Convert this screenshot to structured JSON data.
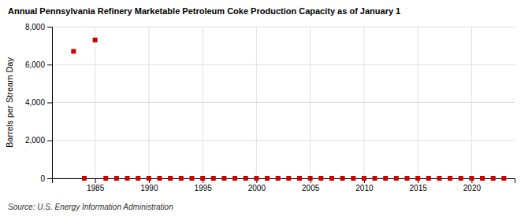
{
  "chart_data": {
    "type": "scatter",
    "title": "Annual Pennsylvania Refinery Marketable Petroleum Coke Production Capacity as of January 1",
    "ylabel": "Barrels per Stream Day",
    "source": "Source: U.S. Energy Information Administration",
    "x": [
      1983,
      1984,
      1985,
      1986,
      1987,
      1988,
      1989,
      1990,
      1991,
      1992,
      1993,
      1994,
      1995,
      1996,
      1997,
      1998,
      1999,
      2000,
      2001,
      2002,
      2003,
      2004,
      2005,
      2006,
      2007,
      2008,
      2009,
      2010,
      2011,
      2012,
      2013,
      2014,
      2015,
      2016,
      2017,
      2018,
      2019,
      2020,
      2021,
      2022,
      2023
    ],
    "values": [
      6700,
      0,
      7300,
      0,
      0,
      0,
      0,
      0,
      0,
      0,
      0,
      0,
      0,
      0,
      0,
      0,
      0,
      0,
      0,
      0,
      0,
      0,
      0,
      0,
      0,
      0,
      0,
      0,
      0,
      0,
      0,
      0,
      0,
      0,
      0,
      0,
      0,
      0,
      0,
      0,
      0
    ],
    "color": "#cc0000",
    "marker": "square",
    "xlim": [
      1981,
      2024
    ],
    "ylim": [
      0,
      8000
    ],
    "xticks": [
      1985,
      1990,
      1995,
      2000,
      2005,
      2010,
      2015,
      2020
    ],
    "yticks": [
      0,
      {
        "value": 2000,
        "label": "2,000"
      },
      {
        "value": 4000,
        "label": "4,000"
      },
      {
        "value": 6000,
        "label": "6,000"
      },
      {
        "value": 8000,
        "label": "8,000"
      }
    ],
    "grid": true
  }
}
